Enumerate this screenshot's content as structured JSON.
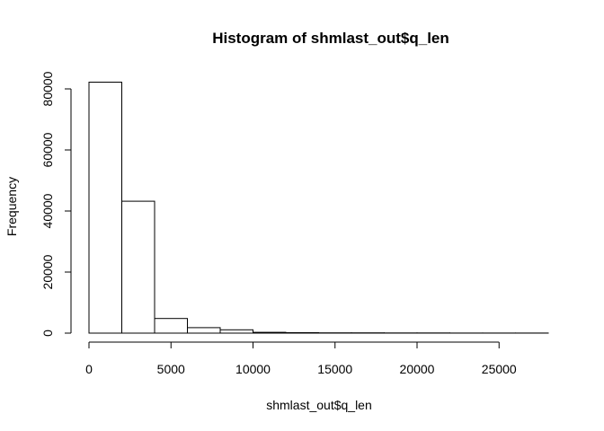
{
  "chart_data": {
    "type": "bar",
    "title": "Histogram of shmlast_out$q_len",
    "xlabel": "shmlast_out$q_len",
    "ylabel": "Frequency",
    "bin_edges": [
      0,
      2000,
      4000,
      6000,
      8000,
      10000,
      12000,
      14000,
      16000,
      18000,
      20000,
      22000,
      24000,
      26000,
      28000
    ],
    "values": [
      82200,
      43200,
      4800,
      1800,
      1100,
      250,
      150,
      100,
      80,
      60,
      50,
      40,
      30,
      30
    ],
    "xlim": [
      0,
      28000
    ],
    "ylim": [
      0,
      80000
    ],
    "x_ticks": [
      0,
      5000,
      10000,
      15000,
      20000,
      25000
    ],
    "y_ticks": [
      0,
      20000,
      40000,
      60000,
      80000
    ],
    "grid": false,
    "legend": "none"
  }
}
